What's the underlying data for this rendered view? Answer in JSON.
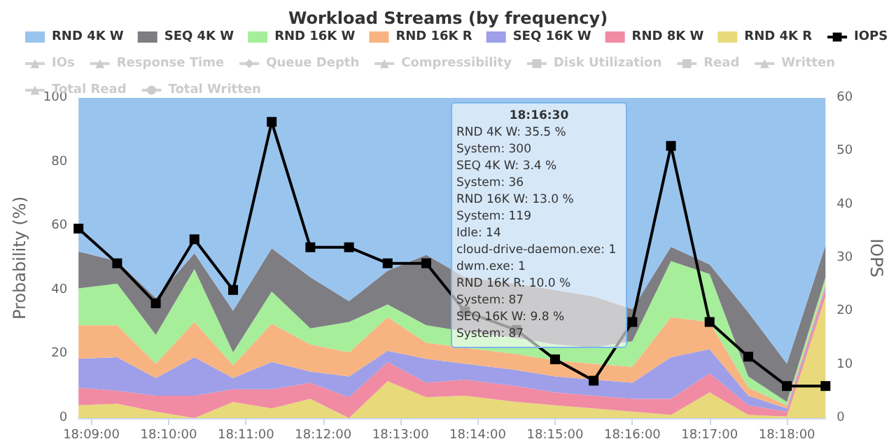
{
  "chart_data": {
    "type": "area",
    "title": "Workload Streams (by frequency)",
    "ylabel": "Probability (%)",
    "y2label": "IOPS",
    "stacked": true,
    "legend": "top",
    "grid": "y",
    "x": [
      18.14722,
      18.15556,
      18.16389,
      18.17222,
      18.18056,
      18.18889,
      18.19722,
      18.20556,
      18.21389,
      18.22222,
      18.23056,
      18.24167,
      18.25,
      18.25833,
      18.26667,
      18.275,
      18.28333,
      18.29167,
      18.3,
      18.30833
    ],
    "xlim": [
      18.14722,
      18.30833
    ],
    "xticks": [
      {
        "value": 18.15,
        "label": "18:09:00"
      },
      {
        "value": 18.16667,
        "label": "18:10:00"
      },
      {
        "value": 18.18333,
        "label": "18:11:00"
      },
      {
        "value": 18.2,
        "label": "18:12:00"
      },
      {
        "value": 18.21667,
        "label": "18:13:00"
      },
      {
        "value": 18.23333,
        "label": "18:14:00"
      },
      {
        "value": 18.25,
        "label": "18:15:00"
      },
      {
        "value": 18.26667,
        "label": "18:16:00"
      },
      {
        "value": 18.28333,
        "label": "18:17:00"
      },
      {
        "value": 18.3,
        "label": "18:18:00"
      }
    ],
    "ylim": [
      0,
      100
    ],
    "yticks": [
      0,
      20,
      40,
      60,
      80,
      100
    ],
    "y2lim": [
      0,
      60
    ],
    "y2ticks": [
      0,
      10,
      20,
      30,
      40,
      50,
      60
    ],
    "series": [
      {
        "name": "RND 4K R",
        "color": "#e8d97a",
        "values": [
          4,
          4.5,
          2,
          0,
          5,
          3,
          6,
          0,
          11.5,
          6.5,
          7,
          5,
          4,
          3,
          2,
          1,
          8,
          1,
          0.5,
          38
        ]
      },
      {
        "name": "RND 8K W",
        "color": "#f08ba3",
        "values": [
          5.5,
          4,
          5,
          7,
          4,
          6,
          5,
          6.5,
          6,
          4.5,
          5,
          5,
          4,
          4,
          4,
          5,
          6,
          3,
          1.5,
          2
        ]
      },
      {
        "name": "SEQ 16K W",
        "color": "#9e9fe8",
        "values": [
          9,
          10.5,
          5.5,
          12,
          3.5,
          8.5,
          3.5,
          6.5,
          3.5,
          7.5,
          5,
          5,
          5,
          5,
          5,
          13,
          7.5,
          3,
          1,
          1
        ]
      },
      {
        "name": "RND 16K R",
        "color": "#f7b481",
        "values": [
          10.5,
          10,
          4.5,
          11,
          4,
          12,
          8.5,
          7.5,
          10.5,
          5,
          5,
          5,
          5,
          5,
          5,
          12.5,
          8.5,
          2.5,
          1,
          1
        ]
      },
      {
        "name": "RND 16K W",
        "color": "#a6ee9a",
        "values": [
          11.5,
          13,
          9,
          16.5,
          4,
          10,
          5,
          9.5,
          4,
          5.5,
          5,
          5,
          5,
          5,
          8,
          17.5,
          15,
          3.5,
          1,
          2
        ]
      },
      {
        "name": "SEQ 4K W",
        "color": "#7e7d82",
        "values": [
          11.5,
          7,
          11.5,
          5,
          13,
          13.5,
          16,
          6.5,
          10.5,
          22,
          17,
          17,
          17,
          16,
          10,
          4.5,
          3,
          20,
          12,
          10
        ]
      },
      {
        "name": "RND 4K W",
        "color": "#99c4ee",
        "values": [
          48,
          51,
          62.5,
          48.5,
          66.5,
          47,
          56,
          63.5,
          54,
          49,
          56,
          58,
          60,
          62,
          66,
          46.5,
          52,
          67,
          83,
          46
        ]
      },
      {
        "name": "IOPS",
        "type": "line",
        "axis": "y2",
        "marker": "square",
        "color": "#000000",
        "values": [
          35.5,
          29,
          21.5,
          33.5,
          24,
          55.5,
          32,
          32,
          29,
          29,
          20,
          16.5,
          11,
          7,
          18,
          51,
          18,
          11.5,
          6,
          6
        ]
      },
      {
        "name": "IOs",
        "type": "line",
        "marker": "triangle",
        "color": "#cccccc",
        "values": [
          null,
          null,
          null,
          null,
          null,
          null,
          null,
          null,
          null,
          null,
          null,
          null,
          null,
          null,
          null,
          null,
          null,
          null,
          null,
          null
        ]
      },
      {
        "name": "Response Time",
        "type": "line",
        "marker": "triangle",
        "color": "#cccccc",
        "values": [
          null,
          null,
          null,
          null,
          null,
          null,
          null,
          null,
          null,
          null,
          null,
          null,
          null,
          null,
          null,
          null,
          null,
          null,
          null,
          null
        ]
      },
      {
        "name": "Queue Depth",
        "type": "line",
        "marker": "diamond",
        "color": "#cccccc",
        "values": [
          null,
          null,
          null,
          null,
          null,
          null,
          null,
          null,
          null,
          null,
          null,
          null,
          null,
          null,
          null,
          null,
          null,
          null,
          null,
          null
        ]
      },
      {
        "name": "Compressibility",
        "type": "line",
        "marker": "triangle",
        "color": "#cccccc",
        "values": [
          null,
          null,
          null,
          null,
          null,
          null,
          null,
          null,
          null,
          null,
          null,
          null,
          null,
          null,
          null,
          null,
          null,
          null,
          null,
          null
        ]
      },
      {
        "name": "Disk Utilization",
        "type": "line",
        "marker": "cross",
        "color": "#cccccc",
        "values": [
          null,
          null,
          null,
          null,
          null,
          null,
          null,
          null,
          null,
          null,
          null,
          null,
          null,
          null,
          null,
          null,
          null,
          null,
          null,
          null
        ]
      },
      {
        "name": "Read",
        "type": "line",
        "marker": "square",
        "color": "#cccccc",
        "values": [
          null,
          null,
          null,
          null,
          null,
          null,
          null,
          null,
          null,
          null,
          null,
          null,
          null,
          null,
          null,
          null,
          null,
          null,
          null,
          null
        ]
      },
      {
        "name": "Written",
        "type": "line",
        "marker": "triangle",
        "color": "#cccccc",
        "values": [
          null,
          null,
          null,
          null,
          null,
          null,
          null,
          null,
          null,
          null,
          null,
          null,
          null,
          null,
          null,
          null,
          null,
          null,
          null,
          null
        ]
      },
      {
        "name": "Total Read",
        "type": "line",
        "marker": "triangle",
        "color": "#cccccc",
        "values": [
          null,
          null,
          null,
          null,
          null,
          null,
          null,
          null,
          null,
          null,
          null,
          null,
          null,
          null,
          null,
          null,
          null,
          null,
          null,
          null
        ]
      },
      {
        "name": "Total Written",
        "type": "line",
        "marker": "circle",
        "color": "#cccccc",
        "values": [
          null,
          null,
          null,
          null,
          null,
          null,
          null,
          null,
          null,
          null,
          null,
          null,
          null,
          null,
          null,
          null,
          null,
          null,
          null,
          null
        ]
      }
    ],
    "annotations": [
      "18:16:30",
      "RND 4K W: 35.5 %",
      "System: 300",
      "SEQ 4K W: 3.4 %",
      "System: 36",
      "RND 16K W: 13.0 %",
      "System: 119",
      "Idle: 14",
      "cloud-drive-daemon.exe: 1",
      "dwm.exe: 1",
      "RND 16K R: 10.0 %",
      "System: 87",
      "SEQ 16K W: 9.8 %",
      "System: 87"
    ]
  }
}
